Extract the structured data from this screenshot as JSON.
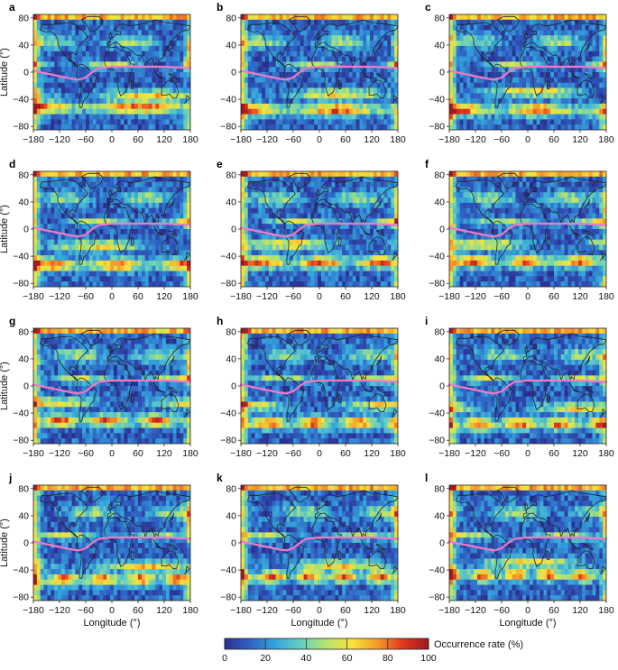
{
  "chart_data": {
    "type": "heatmap",
    "panel_letters": [
      "a",
      "b",
      "c",
      "d",
      "e",
      "f",
      "g",
      "h",
      "i",
      "j",
      "k",
      "l"
    ],
    "xlabel": "Longitude (°)",
    "ylabel": "Latitude (°)",
    "xticks": [
      -180,
      -120,
      -60,
      0,
      60,
      120,
      180
    ],
    "yticks": [
      80,
      40,
      0,
      -40,
      -80
    ],
    "xlim": [
      -180,
      180
    ],
    "ylim": [
      -85,
      85
    ],
    "overlay_curve": {
      "color": "#f07ac8",
      "lon": [
        -180,
        -150,
        -120,
        -90,
        -75,
        -60,
        -45,
        -30,
        0,
        60,
        120,
        180
      ],
      "lat": [
        2,
        -2,
        -6,
        -10,
        -11,
        -8,
        0,
        6,
        8,
        8,
        8,
        6
      ]
    },
    "colorbar": {
      "label": "Occurrence rate (%)",
      "ticks": [
        0,
        20,
        40,
        60,
        80,
        100
      ],
      "range": [
        0,
        100
      ],
      "colors": [
        "#2b2f8f",
        "#2f62c4",
        "#35a6dc",
        "#66cfc0",
        "#b7e36a",
        "#fbe23c",
        "#f59a2a",
        "#e2361f",
        "#9e1a1d"
      ]
    }
  }
}
